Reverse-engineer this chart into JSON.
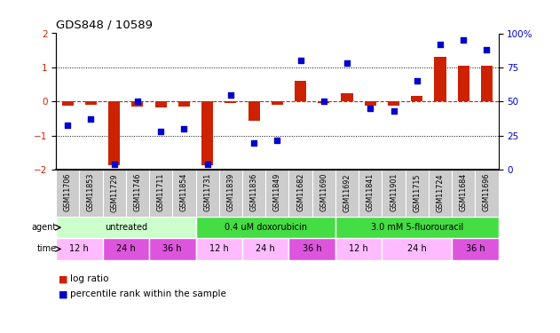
{
  "title": "GDS848 / 10589",
  "samples": [
    "GSM11706",
    "GSM11853",
    "GSM11729",
    "GSM11746",
    "GSM11711",
    "GSM11854",
    "GSM11731",
    "GSM11839",
    "GSM11836",
    "GSM11849",
    "GSM11682",
    "GSM11690",
    "GSM11692",
    "GSM11841",
    "GSM11901",
    "GSM11715",
    "GSM11724",
    "GSM11684",
    "GSM11696"
  ],
  "log_ratio": [
    -0.12,
    -0.08,
    -1.85,
    -0.15,
    -0.18,
    -0.15,
    -1.87,
    -0.05,
    -0.55,
    -0.08,
    0.6,
    -0.05,
    0.25,
    -0.12,
    -0.12,
    0.18,
    1.3,
    1.05,
    1.05
  ],
  "percentile_rank": [
    33,
    37,
    4,
    50,
    28,
    30,
    4,
    55,
    20,
    22,
    80,
    50,
    78,
    45,
    43,
    65,
    92,
    95,
    88
  ],
  "ylim_left": [
    -2,
    2
  ],
  "ylim_right": [
    0,
    100
  ],
  "yticks_left": [
    -2,
    -1,
    0,
    1,
    2
  ],
  "yticks_right": [
    0,
    25,
    50,
    75,
    100
  ],
  "bar_color": "#cc2200",
  "dot_color": "#0000cc",
  "agent_groups": [
    {
      "label": "untreated",
      "start": 0,
      "end": 6,
      "color": "#ccffcc"
    },
    {
      "label": "0.4 uM doxorubicin",
      "start": 6,
      "end": 12,
      "color": "#44dd44"
    },
    {
      "label": "3.0 mM 5-fluorouracil",
      "start": 12,
      "end": 19,
      "color": "#44dd44"
    }
  ],
  "time_blocks": [
    {
      "label": "12 h",
      "start": 0,
      "end": 2,
      "color": "#ffbbff"
    },
    {
      "label": "24 h",
      "start": 2,
      "end": 4,
      "color": "#dd55dd"
    },
    {
      "label": "36 h",
      "start": 4,
      "end": 6,
      "color": "#dd55dd"
    },
    {
      "label": "12 h",
      "start": 6,
      "end": 8,
      "color": "#ffbbff"
    },
    {
      "label": "24 h",
      "start": 8,
      "end": 10,
      "color": "#ffbbff"
    },
    {
      "label": "36 h",
      "start": 10,
      "end": 12,
      "color": "#dd55dd"
    },
    {
      "label": "12 h",
      "start": 12,
      "end": 14,
      "color": "#ffbbff"
    },
    {
      "label": "24 h",
      "start": 14,
      "end": 17,
      "color": "#ffbbff"
    },
    {
      "label": "36 h",
      "start": 17,
      "end": 19,
      "color": "#dd55dd"
    }
  ],
  "background_color": "#ffffff",
  "bar_color_red": "#cc2200",
  "dot_color_blue": "#0000cc",
  "tick_color_left": "#cc2200",
  "tick_color_right": "#0000cc",
  "label_bg_color": "#cccccc",
  "separator_color": "#888888"
}
